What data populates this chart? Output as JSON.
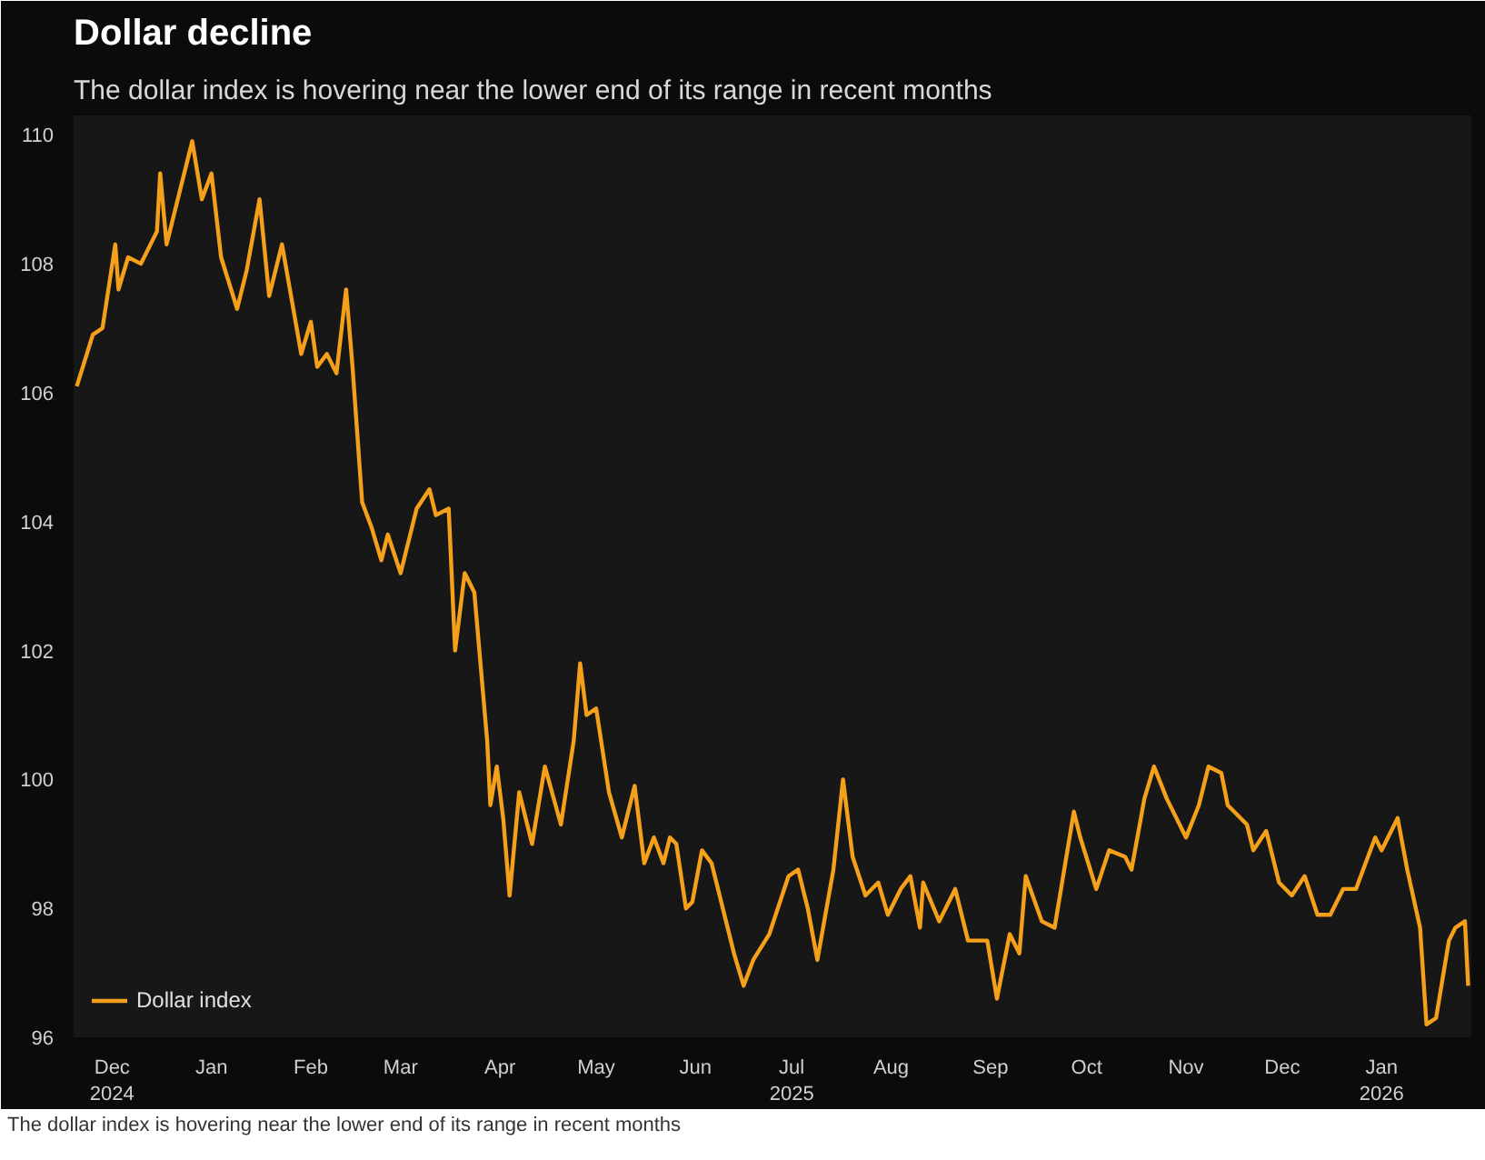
{
  "chart_data": {
    "type": "line",
    "title": "Dollar decline",
    "subtitle": "The dollar index is hovering near the lower end of its range in recent months",
    "annotations": [
      "The dollar index is hovering near the lower end of its range in recent months"
    ],
    "x": [
      "2024-11-20",
      "2024-11-25",
      "2024-11-28",
      "2024-12-02",
      "2024-12-03",
      "2024-12-06",
      "2024-12-10",
      "2024-12-15",
      "2024-12-16",
      "2024-12-18",
      "2024-12-22",
      "2024-12-26",
      "2024-12-29",
      "2025-01-01",
      "2025-01-04",
      "2025-01-09",
      "2025-01-12",
      "2025-01-16",
      "2025-01-19",
      "2025-01-23",
      "2025-01-29",
      "2025-02-01",
      "2025-02-03",
      "2025-02-06",
      "2025-02-09",
      "2025-02-12",
      "2025-02-14",
      "2025-02-17",
      "2025-02-20",
      "2025-02-23",
      "2025-02-25",
      "2025-03-01",
      "2025-03-06",
      "2025-03-10",
      "2025-03-12",
      "2025-03-16",
      "2025-03-18",
      "2025-03-21",
      "2025-03-24",
      "2025-03-28",
      "2025-03-29",
      "2025-03-31",
      "2025-04-02",
      "2025-04-04",
      "2025-04-07",
      "2025-04-11",
      "2025-04-15",
      "2025-04-20",
      "2025-04-24",
      "2025-04-26",
      "2025-04-28",
      "2025-05-01",
      "2025-05-05",
      "2025-05-09",
      "2025-05-13",
      "2025-05-16",
      "2025-05-19",
      "2025-05-22",
      "2025-05-24",
      "2025-05-26",
      "2025-05-29",
      "2025-05-31",
      "2025-06-03",
      "2025-06-06",
      "2025-06-10",
      "2025-06-13",
      "2025-06-16",
      "2025-06-19",
      "2025-06-24",
      "2025-06-30",
      "2025-07-03",
      "2025-07-06",
      "2025-07-09",
      "2025-07-14",
      "2025-07-17",
      "2025-07-20",
      "2025-07-24",
      "2025-07-28",
      "2025-07-31",
      "2025-08-04",
      "2025-08-07",
      "2025-08-10",
      "2025-08-11",
      "2025-08-16",
      "2025-08-21",
      "2025-08-25",
      "2025-08-31",
      "2025-09-03",
      "2025-09-07",
      "2025-09-10",
      "2025-09-12",
      "2025-09-17",
      "2025-09-21",
      "2025-09-27",
      "2025-09-29",
      "2025-10-04",
      "2025-10-08",
      "2025-10-13",
      "2025-10-15",
      "2025-10-19",
      "2025-10-22",
      "2025-10-26",
      "2025-11-01",
      "2025-11-05",
      "2025-11-08",
      "2025-11-12",
      "2025-11-14",
      "2025-11-20",
      "2025-11-22",
      "2025-11-26",
      "2025-11-30",
      "2025-12-04",
      "2025-12-08",
      "2025-12-12",
      "2025-12-16",
      "2025-12-20",
      "2025-12-24",
      "2025-12-27",
      "2025-12-30",
      "2026-01-01",
      "2026-01-06",
      "2026-01-09",
      "2026-01-13",
      "2026-01-15",
      "2026-01-18",
      "2026-01-22",
      "2026-01-24",
      "2026-01-27",
      "2026-01-28"
    ],
    "series": [
      {
        "name": "Dollar index",
        "color": "#f5a01a",
        "values": [
          106.1,
          106.9,
          107.0,
          108.3,
          107.6,
          108.1,
          108.0,
          108.5,
          109.4,
          108.3,
          109.1,
          109.9,
          109.0,
          109.4,
          108.1,
          107.3,
          107.9,
          109.0,
          107.5,
          108.3,
          106.6,
          107.1,
          106.4,
          106.6,
          106.3,
          107.6,
          106.4,
          104.3,
          103.9,
          103.4,
          103.8,
          103.2,
          104.2,
          104.5,
          104.1,
          104.2,
          102.0,
          103.2,
          102.9,
          100.6,
          99.6,
          100.2,
          99.4,
          98.2,
          99.8,
          99.0,
          100.2,
          99.3,
          100.6,
          101.8,
          101.0,
          101.1,
          99.8,
          99.1,
          99.9,
          98.7,
          99.1,
          98.7,
          99.1,
          99.0,
          98.0,
          98.1,
          98.9,
          98.7,
          97.9,
          97.3,
          96.8,
          97.2,
          97.6,
          98.5,
          98.6,
          98.0,
          97.2,
          98.6,
          100.0,
          98.8,
          98.2,
          98.4,
          97.9,
          98.3,
          98.5,
          97.7,
          98.4,
          97.8,
          98.3,
          97.5,
          97.5,
          96.6,
          97.6,
          97.3,
          98.5,
          97.8,
          97.7,
          99.5,
          99.1,
          98.3,
          98.9,
          98.8,
          98.6,
          99.7,
          100.2,
          99.7,
          99.1,
          99.6,
          100.2,
          100.1,
          99.6,
          99.3,
          98.9,
          99.2,
          98.4,
          98.2,
          98.5,
          97.9,
          97.9,
          98.3,
          98.3,
          98.7,
          99.1,
          98.9,
          99.4,
          98.6,
          97.7,
          96.2,
          96.3,
          97.5,
          97.7,
          97.8,
          96.8
        ]
      }
    ],
    "xlim": [
      "2024-11-19",
      "2026-01-29"
    ],
    "xticks": [
      {
        "value": "2024-12-01",
        "label": "Dec\n2024"
      },
      {
        "value": "2025-01-01",
        "label": "Jan"
      },
      {
        "value": "2025-02-01",
        "label": "Feb"
      },
      {
        "value": "2025-03-01",
        "label": "Mar"
      },
      {
        "value": "2025-04-01",
        "label": "Apr"
      },
      {
        "value": "2025-05-01",
        "label": "May"
      },
      {
        "value": "2025-06-01",
        "label": "Jun"
      },
      {
        "value": "2025-07-01",
        "label": "Jul\n2025"
      },
      {
        "value": "2025-08-01",
        "label": "Aug"
      },
      {
        "value": "2025-09-01",
        "label": "Sep"
      },
      {
        "value": "2025-10-01",
        "label": "Oct"
      },
      {
        "value": "2025-11-01",
        "label": "Nov"
      },
      {
        "value": "2025-12-01",
        "label": "Dec"
      },
      {
        "value": "2026-01-01",
        "label": "Jan\n2026"
      }
    ],
    "ylim": [
      96,
      110.3
    ],
    "yticks": [
      96,
      98,
      100,
      102,
      104,
      106,
      108,
      110
    ],
    "legend": "bottom left",
    "line_style": "solid"
  }
}
